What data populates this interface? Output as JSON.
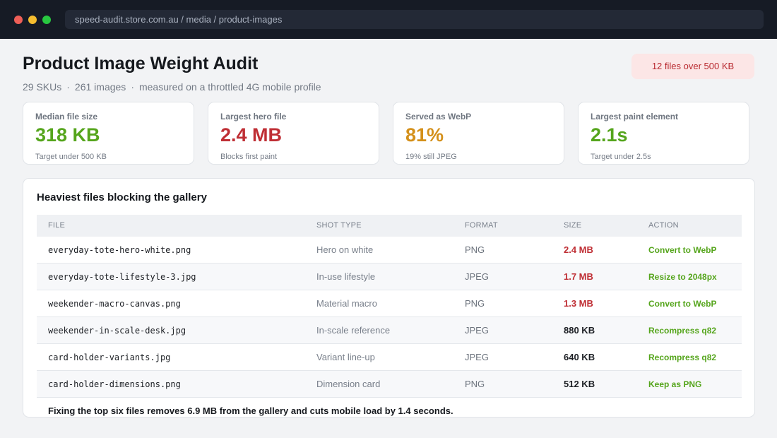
{
  "browser": {
    "url": "speed-audit.store.com.au / media / product-images"
  },
  "header": {
    "title": "Product Image Weight Audit",
    "meta": [
      "29 SKUs",
      "261 images",
      "measured on a throttled 4G mobile profile"
    ],
    "separator": "·",
    "alert": "12 files over 500 KB"
  },
  "colors": {
    "good": "#55a51c",
    "bad": "#bf2e34",
    "warn": "#d4901a",
    "alert_bg": "#fce6e6"
  },
  "stats": [
    {
      "label": "Median file size",
      "value": "318 KB",
      "note": "Target under 500 KB",
      "status": "good"
    },
    {
      "label": "Largest hero file",
      "value": "2.4 MB",
      "note": "Blocks first paint",
      "status": "bad"
    },
    {
      "label": "Served as WebP",
      "value": "81%",
      "note": "19% still JPEG",
      "status": "warn"
    },
    {
      "label": "Largest paint element",
      "value": "2.1s",
      "note": "Target under 2.5s",
      "status": "good"
    }
  ],
  "table": {
    "title": "Heaviest files blocking the gallery",
    "columns": [
      "FILE",
      "SHOT TYPE",
      "FORMAT",
      "SIZE",
      "ACTION"
    ],
    "rows": [
      {
        "file": "everyday-tote-hero-white.png",
        "shot": "Hero on white",
        "format": "PNG",
        "size": "2.4 MB",
        "action": "Convert to WebP",
        "over_limit": true
      },
      {
        "file": "everyday-tote-lifestyle-3.jpg",
        "shot": "In-use lifestyle",
        "format": "JPEG",
        "size": "1.7 MB",
        "action": "Resize to 2048px",
        "over_limit": true
      },
      {
        "file": "weekender-macro-canvas.png",
        "shot": "Material macro",
        "format": "PNG",
        "size": "1.3 MB",
        "action": "Convert to WebP",
        "over_limit": true
      },
      {
        "file": "weekender-in-scale-desk.jpg",
        "shot": "In-scale reference",
        "format": "JPEG",
        "size": "880 KB",
        "action": "Recompress q82",
        "over_limit": false
      },
      {
        "file": "card-holder-variants.jpg",
        "shot": "Variant line-up",
        "format": "JPEG",
        "size": "640 KB",
        "action": "Recompress q82",
        "over_limit": false
      },
      {
        "file": "card-holder-dimensions.png",
        "shot": "Dimension card",
        "format": "PNG",
        "size": "512 KB",
        "action": "Keep as PNG",
        "over_limit": false
      }
    ],
    "summary": "Fixing the top six files removes 6.9 MB from the gallery and cuts mobile load by 1.4 seconds."
  }
}
